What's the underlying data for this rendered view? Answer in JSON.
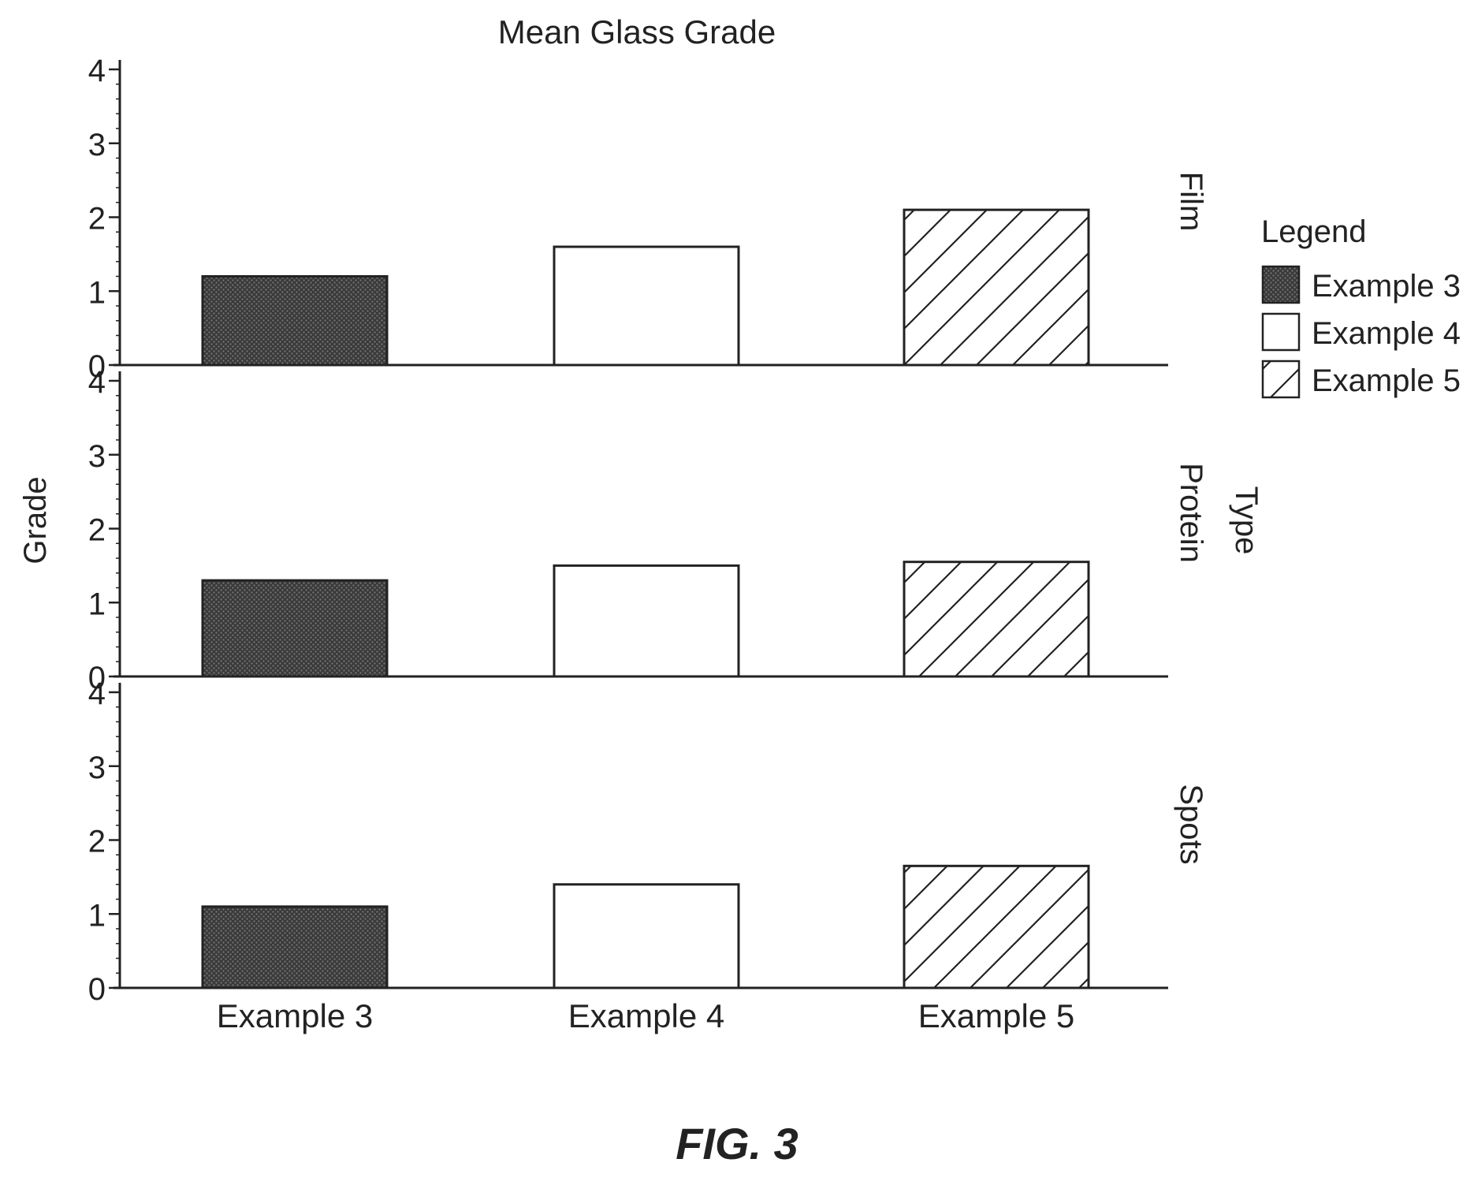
{
  "chart_data": {
    "type": "bar",
    "title": "Mean Glass Grade",
    "ylabel": "Grade",
    "xlabel": "",
    "facet_title": "Type",
    "facets": [
      "Film",
      "Protein",
      "Spots"
    ],
    "categories": [
      "Example 3",
      "Example 4",
      "Example 5"
    ],
    "values": {
      "Film": [
        1.2,
        1.6,
        2.1
      ],
      "Protein": [
        1.3,
        1.5,
        1.55
      ],
      "Spots": [
        1.1,
        1.4,
        1.65
      ]
    },
    "ylim": [
      0,
      4
    ],
    "yticks": [
      "0",
      "1",
      "2",
      "3",
      "4"
    ],
    "grid": false,
    "legend": {
      "title": "Legend",
      "position": "right",
      "entries": [
        "Example 3",
        "Example 4",
        "Example 5"
      ]
    },
    "fills": {
      "Example 3": "dark-stipple",
      "Example 4": "white",
      "Example 5": "diagonal-hatch"
    }
  },
  "figure_caption": "FIG. 3"
}
